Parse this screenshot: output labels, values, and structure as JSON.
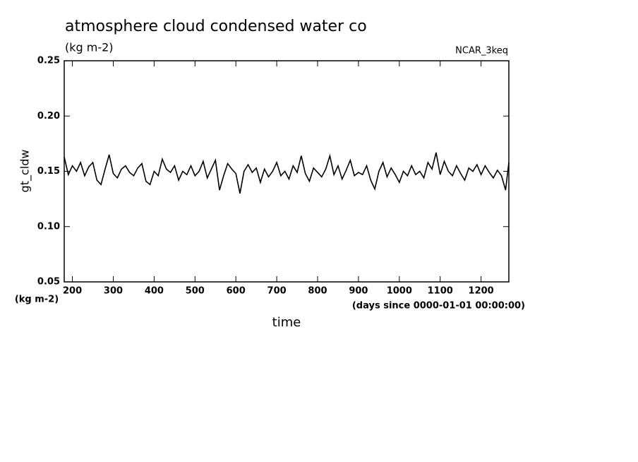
{
  "chart_data": {
    "type": "line",
    "title": "atmosphere cloud condensed water co",
    "subtitle": "(kg m-2)",
    "annotation": "NCAR_3keq",
    "y_label": "gt_cldw",
    "y_unit": "(kg m-2)",
    "x_unit": "(days since 0000-01-01 00:00:00)",
    "x_label": "time",
    "xlim": [
      180,
      1268
    ],
    "ylim": [
      0.05,
      0.25
    ],
    "xticks": [
      200,
      300,
      400,
      500,
      600,
      700,
      800,
      900,
      1000,
      1100,
      1200
    ],
    "yticks": [
      0.05,
      {
        "value": 0.1,
        "label": "0.10"
      },
      0.15,
      {
        "value": 0.2,
        "label": "0.20"
      },
      0.25
    ],
    "x": [
      180,
      190,
      200,
      210,
      220,
      230,
      240,
      250,
      260,
      270,
      280,
      290,
      300,
      310,
      320,
      330,
      340,
      350,
      360,
      370,
      380,
      390,
      400,
      410,
      420,
      430,
      440,
      450,
      460,
      470,
      480,
      490,
      500,
      510,
      520,
      530,
      540,
      550,
      560,
      570,
      580,
      590,
      600,
      610,
      620,
      630,
      640,
      650,
      660,
      670,
      680,
      690,
      700,
      710,
      720,
      730,
      740,
      750,
      760,
      770,
      780,
      790,
      800,
      810,
      820,
      830,
      840,
      850,
      860,
      870,
      880,
      890,
      900,
      910,
      920,
      930,
      940,
      950,
      960,
      970,
      980,
      990,
      1000,
      1010,
      1020,
      1030,
      1040,
      1050,
      1060,
      1070,
      1080,
      1090,
      1100,
      1110,
      1120,
      1130,
      1140,
      1150,
      1160,
      1170,
      1180,
      1190,
      1200,
      1210,
      1220,
      1230,
      1240,
      1250,
      1260,
      1268
    ],
    "series": [
      {
        "name": "gt_cldw",
        "color": "#000000",
        "values": [
          0.163,
          0.147,
          0.155,
          0.15,
          0.158,
          0.146,
          0.154,
          0.158,
          0.142,
          0.138,
          0.152,
          0.165,
          0.148,
          0.144,
          0.152,
          0.155,
          0.149,
          0.146,
          0.153,
          0.157,
          0.141,
          0.138,
          0.15,
          0.146,
          0.161,
          0.152,
          0.149,
          0.155,
          0.142,
          0.15,
          0.147,
          0.155,
          0.146,
          0.15,
          0.159,
          0.144,
          0.152,
          0.16,
          0.133,
          0.146,
          0.157,
          0.152,
          0.148,
          0.13,
          0.15,
          0.156,
          0.149,
          0.153,
          0.14,
          0.152,
          0.145,
          0.15,
          0.158,
          0.146,
          0.15,
          0.143,
          0.155,
          0.149,
          0.164,
          0.148,
          0.141,
          0.153,
          0.149,
          0.145,
          0.152,
          0.164,
          0.147,
          0.155,
          0.143,
          0.151,
          0.16,
          0.146,
          0.149,
          0.147,
          0.155,
          0.142,
          0.134,
          0.15,
          0.158,
          0.145,
          0.153,
          0.147,
          0.14,
          0.15,
          0.146,
          0.155,
          0.147,
          0.15,
          0.144,
          0.158,
          0.152,
          0.167,
          0.147,
          0.159,
          0.15,
          0.146,
          0.155,
          0.148,
          0.142,
          0.153,
          0.15,
          0.156,
          0.147,
          0.155,
          0.149,
          0.144,
          0.151,
          0.146,
          0.133,
          0.158
        ]
      }
    ]
  }
}
